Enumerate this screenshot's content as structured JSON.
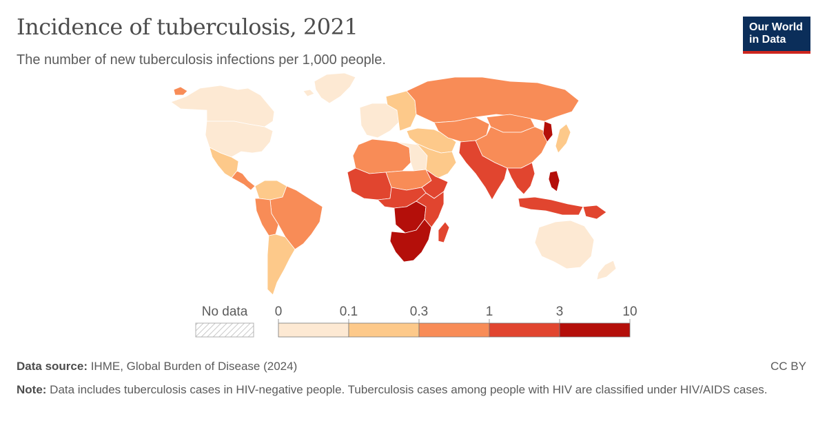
{
  "title": "Incidence of tuberculosis, 2021",
  "subtitle": "The number of new tuberculosis infections per 1,000 people.",
  "logo": {
    "line1": "Our World",
    "line2": "in Data"
  },
  "legend": {
    "no_data_label": "No data",
    "ticks": [
      "0",
      "0.1",
      "0.3",
      "1",
      "3",
      "10"
    ],
    "colors": [
      "#fde9d3",
      "#fdc98a",
      "#f88c57",
      "#e1452f",
      "#b40f0a"
    ],
    "no_data_color": "hatched-grey"
  },
  "footer": {
    "source_label": "Data source:",
    "source_text": " IHME, Global Burden of Disease (2024)",
    "license": "CC BY",
    "note_label": "Note:",
    "note_text": " Data includes tuberculosis cases in HIV-negative people. Tuberculosis cases among people with HIV are classified under HIV/AIDS cases."
  },
  "map_regions": [
    {
      "name": "Canada",
      "bin": 0
    },
    {
      "name": "United States",
      "bin": 0
    },
    {
      "name": "Mexico",
      "bin": 1
    },
    {
      "name": "Central America",
      "bin": 2
    },
    {
      "name": "Greenland",
      "bin": 2
    },
    {
      "name": "Colombia / Venezuela",
      "bin": 1
    },
    {
      "name": "Brazil",
      "bin": 2
    },
    {
      "name": "Peru / Bolivia",
      "bin": 2
    },
    {
      "name": "Argentina / Chile",
      "bin": 1
    },
    {
      "name": "Western Europe",
      "bin": 0
    },
    {
      "name": "Scandinavia",
      "bin": 0
    },
    {
      "name": "Eastern Europe",
      "bin": 1
    },
    {
      "name": "Russia",
      "bin": 2
    },
    {
      "name": "North Africa",
      "bin": 2
    },
    {
      "name": "Egypt / Libya",
      "bin": 0
    },
    {
      "name": "Middle East",
      "bin": 1
    },
    {
      "name": "Arabian Peninsula",
      "bin": 1
    },
    {
      "name": "Central Asia",
      "bin": 2
    },
    {
      "name": "China",
      "bin": 2
    },
    {
      "name": "Mongolia",
      "bin": 2
    },
    {
      "name": "North Korea",
      "bin": 4
    },
    {
      "name": "Japan",
      "bin": 1
    },
    {
      "name": "South Asia",
      "bin": 3
    },
    {
      "name": "Southeast Asia",
      "bin": 3
    },
    {
      "name": "Philippines",
      "bin": 4
    },
    {
      "name": "Indonesia",
      "bin": 3
    },
    {
      "name": "Papua New Guinea",
      "bin": 3
    },
    {
      "name": "Australia",
      "bin": 0
    },
    {
      "name": "New Zealand",
      "bin": 0
    },
    {
      "name": "West Africa",
      "bin": 3
    },
    {
      "name": "Sahel",
      "bin": 2
    },
    {
      "name": "Central Africa",
      "bin": 3
    },
    {
      "name": "Central African Republic / Congo",
      "bin": 4
    },
    {
      "name": "Horn of Africa",
      "bin": 3
    },
    {
      "name": "East Africa",
      "bin": 3
    },
    {
      "name": "Southern Africa",
      "bin": 4
    },
    {
      "name": "Madagascar",
      "bin": 3
    },
    {
      "name": "Iceland",
      "bin": 0
    }
  ]
}
